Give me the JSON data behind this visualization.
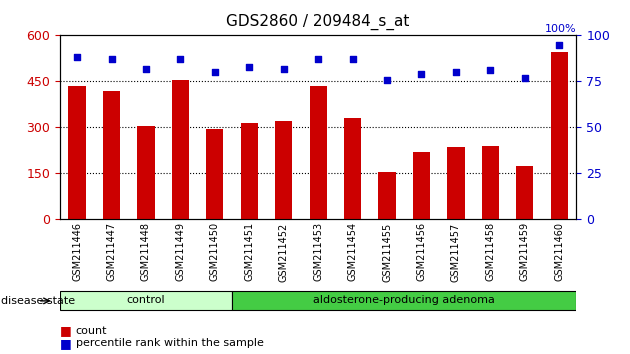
{
  "title": "GDS2860 / 209484_s_at",
  "samples": [
    "GSM211446",
    "GSM211447",
    "GSM211448",
    "GSM211449",
    "GSM211450",
    "GSM211451",
    "GSM211452",
    "GSM211453",
    "GSM211454",
    "GSM211455",
    "GSM211456",
    "GSM211457",
    "GSM211458",
    "GSM211459",
    "GSM211460"
  ],
  "counts": [
    435,
    420,
    305,
    455,
    295,
    315,
    320,
    435,
    330,
    155,
    220,
    235,
    240,
    175,
    545
  ],
  "percentiles": [
    88,
    87,
    82,
    87,
    80,
    83,
    82,
    87,
    87,
    76,
    79,
    80,
    81,
    77,
    95
  ],
  "groups": [
    {
      "label": "control",
      "start": 0,
      "end": 5,
      "color": "#ccffcc"
    },
    {
      "label": "aldosterone-producing adenoma",
      "start": 5,
      "end": 15,
      "color": "#44cc44"
    }
  ],
  "bar_color": "#cc0000",
  "dot_color": "#0000cc",
  "left_yticks": [
    0,
    150,
    300,
    450,
    600
  ],
  "left_ylim": [
    0,
    600
  ],
  "right_yticks": [
    0,
    25,
    50,
    75,
    100
  ],
  "right_ylim": [
    0,
    100
  ],
  "right_ylabel": "100%",
  "legend_count_label": "count",
  "legend_pct_label": "percentile rank within the sample",
  "disease_state_label": "disease state",
  "background_color": "#ffffff",
  "plot_bg_color": "#ffffff",
  "tick_label_color_left": "#cc0000",
  "tick_label_color_right": "#0000cc",
  "gridline_color": "#000000",
  "bar_width": 0.5,
  "grid_yticks": [
    150,
    300,
    450
  ]
}
